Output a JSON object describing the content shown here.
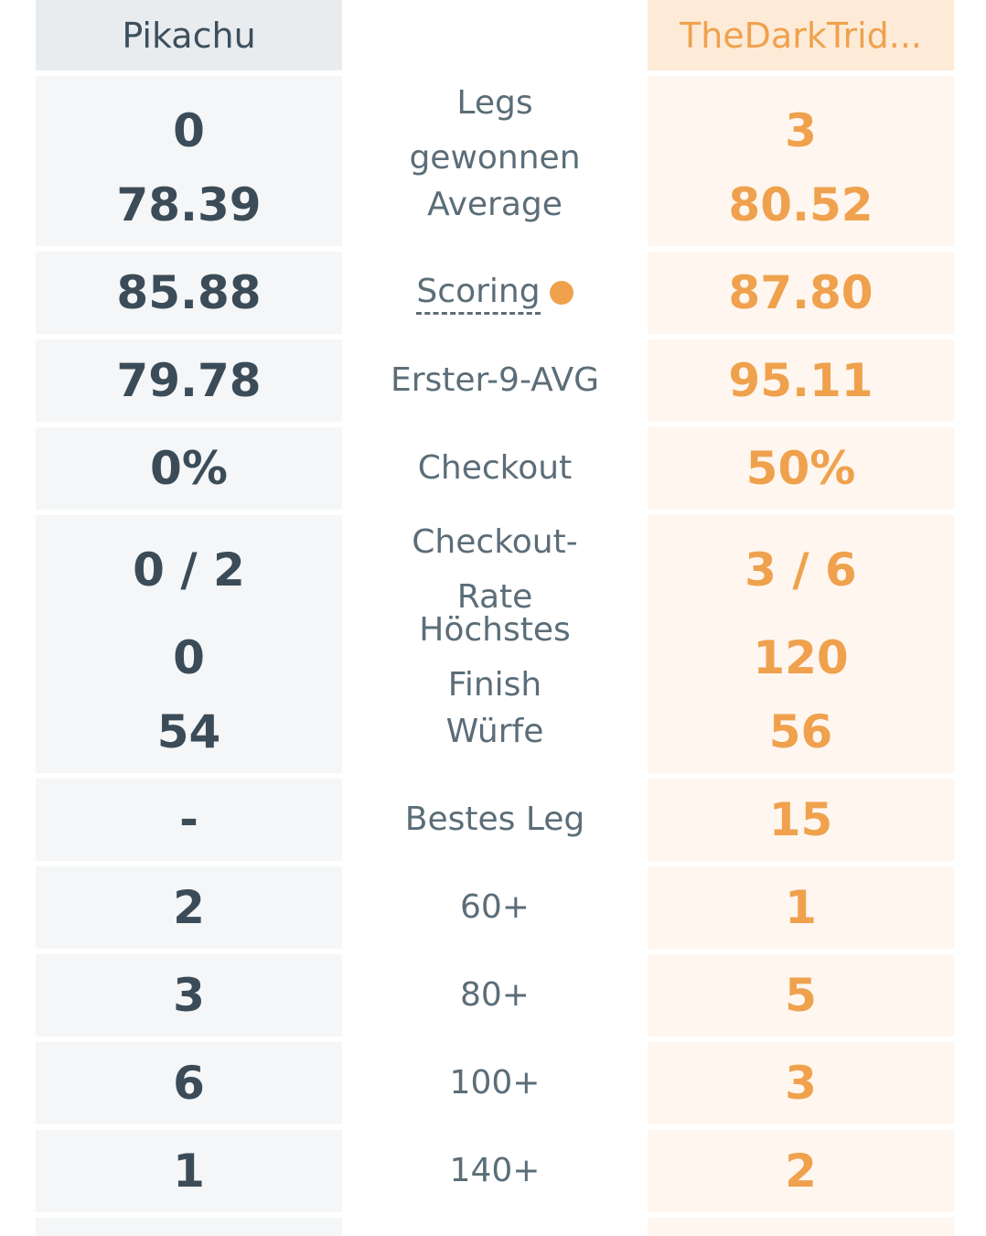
{
  "header": {
    "player_left": "Pikachu",
    "player_right": "TheDarkTrid..."
  },
  "stats": [
    {
      "label": "Legs gewonnen",
      "left": "0",
      "right": "3"
    },
    {
      "label": "Average",
      "left": "78.39",
      "right": "80.52"
    },
    {
      "label": "Scoring",
      "left": "85.88",
      "right": "87.80"
    },
    {
      "label": "Erster-9-AVG",
      "left": "79.78",
      "right": "95.11"
    },
    {
      "label": "Checkout",
      "left": "0%",
      "right": "50%"
    },
    {
      "label": "Checkout-Rate",
      "left": "0 / 2",
      "right": "3 / 6"
    },
    {
      "label": "Höchstes Finish",
      "left": "0",
      "right": "120"
    },
    {
      "label": "Würfe",
      "left": "54",
      "right": "56"
    },
    {
      "label": "Bestes Leg",
      "left": "-",
      "right": "15"
    },
    {
      "label": "60+",
      "left": "2",
      "right": "1"
    },
    {
      "label": "80+",
      "left": "3",
      "right": "5"
    },
    {
      "label": "100+",
      "left": "6",
      "right": "3"
    },
    {
      "label": "140+",
      "left": "1",
      "right": "2"
    }
  ],
  "colors": {
    "accent": "#f0a14d",
    "text_dark": "#3b4c58",
    "label_gray": "#5b6d78"
  },
  "icons": {
    "scoring_indicator": "orange-dot-icon"
  }
}
